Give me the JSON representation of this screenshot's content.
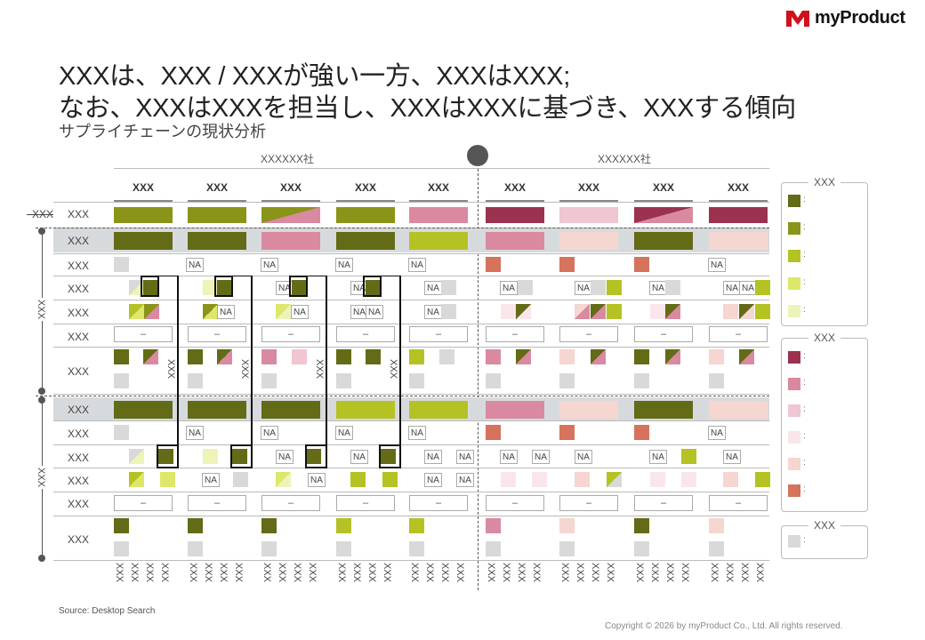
{
  "brand": {
    "name": "myProduct"
  },
  "title": {
    "line1": "XXXは、XXX / XXXが強い一方、XXXはXXX;",
    "line2": "なお、XXXはXXXを担当し、XXXはXXXに基づき、XXXする傾向",
    "subtitle": "サプライチェーンの現状分析"
  },
  "groups": {
    "left": "XXXXXX社",
    "right": "XXXXXX社"
  },
  "column_headers": [
    "XXX",
    "XXX",
    "XXX",
    "XXX",
    "XXX",
    "XXX",
    "XXX",
    "XXX",
    "XXX"
  ],
  "row_labels": {
    "r0": "XXX",
    "r0_outer": "XXX",
    "sec1": [
      "XXX",
      "XXX",
      "XXX",
      "XXX",
      "XXX",
      "XXX"
    ],
    "sec1_outer": "XXX",
    "sec2": [
      "XXX",
      "XXX",
      "XXX",
      "XXX",
      "XXX",
      "XXX"
    ],
    "sec2_outer": "XXX",
    "bracket_label": "XXX"
  },
  "na_text": "NA",
  "dash_text": "–",
  "bottom_label": "XXX",
  "legend_green": {
    "title": "XXX",
    "items": [
      ":",
      ":",
      ":",
      ":",
      ":"
    ]
  },
  "legend_red": {
    "title": "XXX",
    "items": [
      ":",
      ":",
      ":",
      ":",
      ":",
      ":"
    ]
  },
  "legend_gray": {
    "title": "XXX",
    "items": [
      ":"
    ]
  },
  "colors": {
    "g1": "#636b16",
    "g2": "#8a9419",
    "g3": "#b5c224",
    "g4": "#dde76c",
    "g5": "#eef3b8",
    "r1": "#9b3350",
    "r2": "#d98aa0",
    "r3": "#efc6d2",
    "r4": "#fae6ea",
    "r5": "#f5d6d0",
    "r6": "#d5735c",
    "gray": "#d9d9d9"
  },
  "footer": {
    "source": "Source: Desktop Search",
    "copyright": "Copyright © 2026 by myProduct Co., Ltd.  All rights reserved."
  }
}
